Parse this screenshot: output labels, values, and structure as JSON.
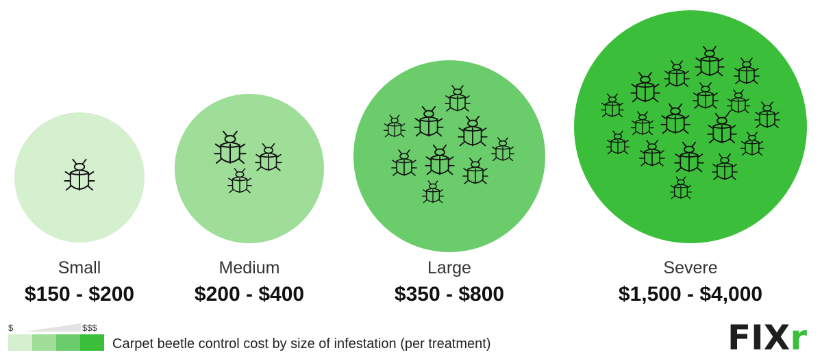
{
  "items": [
    {
      "size": "Small",
      "price": "$150 - $200"
    },
    {
      "size": "Medium",
      "price": "$200 - $400"
    },
    {
      "size": "Large",
      "price": "$350 - $800"
    },
    {
      "size": "Severe",
      "price": "$1,500 - $4,000"
    }
  ],
  "legend": {
    "low": "$",
    "high": "$$$",
    "caption": "Carpet beetle control cost by size of infestation (per treatment)"
  },
  "logo": {
    "text": "FIX",
    "accent": "r"
  }
}
